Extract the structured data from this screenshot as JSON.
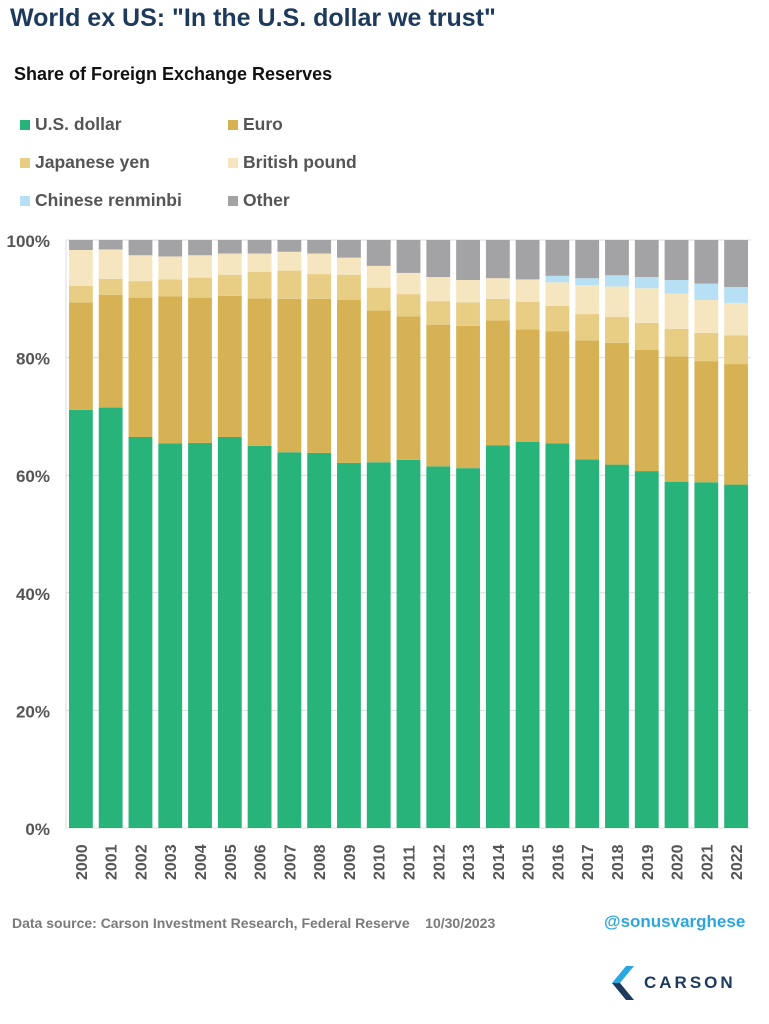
{
  "title": "World ex US: \"In the U.S. dollar we trust\"",
  "chart_data": {
    "type": "bar",
    "stacked": true,
    "title": "Share of Foreign Exchange Reserves",
    "xlabel": "",
    "ylabel": "",
    "ylim": [
      0,
      100
    ],
    "yticks": [
      "0%",
      "20%",
      "40%",
      "60%",
      "80%",
      "100%"
    ],
    "grid": true,
    "legend_position": "top",
    "categories": [
      "2000",
      "2001",
      "2002",
      "2003",
      "2004",
      "2005",
      "2006",
      "2007",
      "2008",
      "2009",
      "2010",
      "2011",
      "2012",
      "2013",
      "2014",
      "2015",
      "2016",
      "2017",
      "2018",
      "2019",
      "2020",
      "2021",
      "2022"
    ],
    "series": [
      {
        "name": "U.S. dollar",
        "color": "#27b37a",
        "values": [
          71.1,
          71.5,
          66.5,
          65.4,
          65.5,
          66.5,
          65.0,
          63.9,
          63.8,
          62.1,
          62.2,
          62.6,
          61.5,
          61.2,
          65.1,
          65.7,
          65.4,
          62.7,
          61.8,
          60.7,
          58.9,
          58.8,
          58.4
        ]
      },
      {
        "name": "Euro",
        "color": "#d6b254",
        "values": [
          18.3,
          19.2,
          23.7,
          25.0,
          24.7,
          24.0,
          25.1,
          26.1,
          26.2,
          27.7,
          25.8,
          24.4,
          24.1,
          24.2,
          21.2,
          19.1,
          19.1,
          20.2,
          20.7,
          20.6,
          21.3,
          20.6,
          20.5
        ]
      },
      {
        "name": "Japanese yen",
        "color": "#e8cd85",
        "values": [
          2.8,
          2.7,
          2.8,
          2.9,
          3.4,
          3.6,
          4.5,
          4.8,
          4.2,
          4.3,
          3.9,
          3.8,
          4.0,
          4.0,
          3.7,
          4.7,
          4.3,
          4.5,
          4.4,
          4.6,
          4.7,
          4.8,
          4.9
        ]
      },
      {
        "name": "British pound",
        "color": "#f5e6c0",
        "values": [
          6.1,
          5.0,
          4.4,
          3.9,
          3.8,
          3.6,
          3.1,
          3.2,
          3.5,
          2.9,
          3.7,
          3.6,
          4.1,
          3.8,
          3.5,
          3.8,
          4.0,
          4.9,
          5.2,
          5.9,
          6.0,
          5.6,
          5.5
        ]
      },
      {
        "name": "Chinese renminbi",
        "color": "#b7e0f5",
        "values": [
          0,
          0,
          0,
          0,
          0,
          0,
          0,
          0,
          0,
          0,
          0,
          0,
          0,
          0,
          0,
          0,
          1.1,
          1.2,
          1.9,
          1.9,
          2.3,
          2.8,
          2.7
        ]
      },
      {
        "name": "Other",
        "color": "#a3a3a5",
        "values": [
          1.7,
          1.6,
          2.6,
          2.8,
          2.6,
          2.3,
          2.3,
          2.0,
          2.3,
          3.0,
          4.4,
          5.6,
          6.3,
          6.8,
          6.5,
          6.7,
          6.1,
          6.5,
          6.0,
          6.3,
          6.8,
          7.4,
          8.0
        ]
      }
    ]
  },
  "footer": {
    "source": "Data source: Carson Investment Research, Federal Reserve    10/30/2023",
    "handle": "@sonusvarghese",
    "logo_text": "CARSON"
  }
}
